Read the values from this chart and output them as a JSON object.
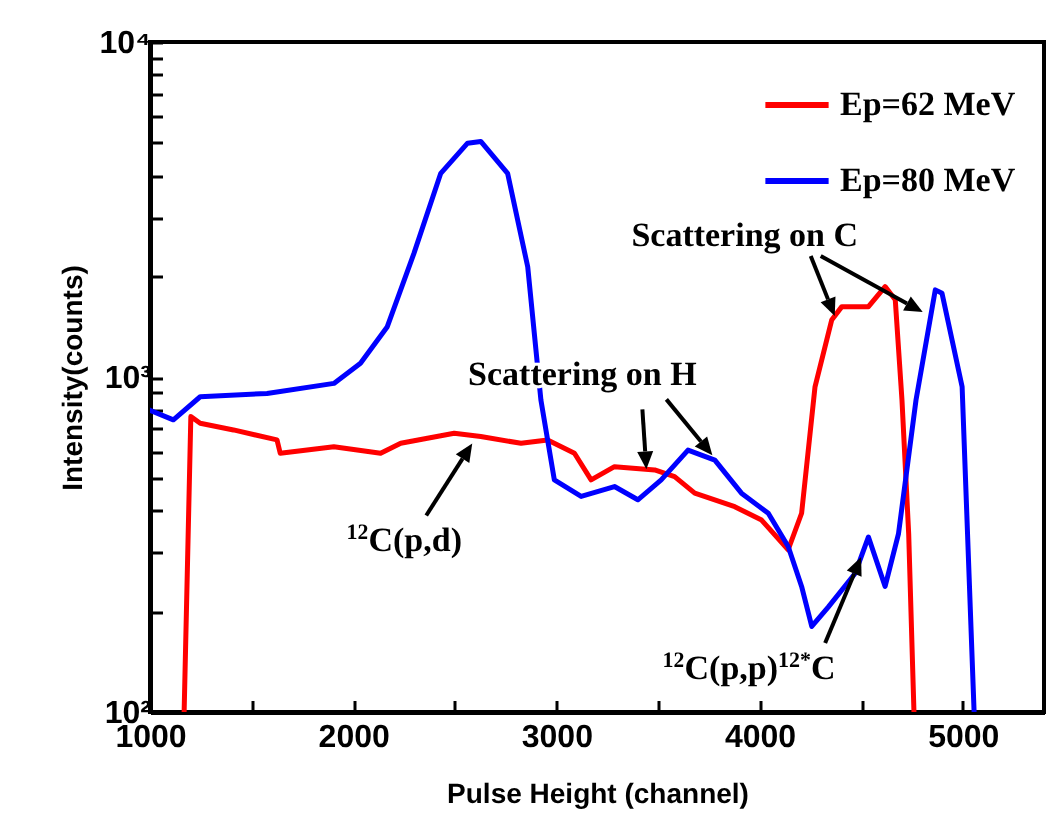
{
  "chart_data": {
    "type": "line",
    "xlabel": "Pulse Height (channel)",
    "ylabel": "Intensity(counts)",
    "log": true,
    "legend": "top right",
    "grid": false,
    "xlim": [
      1000,
      5400
    ],
    "xticks": [
      1000,
      {
        "value": 1500,
        "label": null
      },
      2000,
      {
        "value": 2500,
        "label": null
      },
      3000,
      {
        "value": 3500,
        "label": null
      },
      4000,
      {
        "value": 4500,
        "label": null
      },
      5000
    ],
    "ylim": [
      100,
      10000
    ],
    "yticks": [
      {
        "value": 100,
        "label": "10²"
      },
      {
        "value": 200,
        "label": null
      },
      {
        "value": 300,
        "label": null
      },
      {
        "value": 400,
        "label": null
      },
      {
        "value": 500,
        "label": null
      },
      {
        "value": 600,
        "label": null
      },
      {
        "value": 700,
        "label": null
      },
      {
        "value": 800,
        "label": null
      },
      {
        "value": 900,
        "label": null
      },
      {
        "value": 1000,
        "label": "10³"
      },
      {
        "value": 2000,
        "label": null
      },
      {
        "value": 3000,
        "label": null
      },
      {
        "value": 4000,
        "label": null
      },
      {
        "value": 5000,
        "label": null
      },
      {
        "value": 6000,
        "label": null
      },
      {
        "value": 7000,
        "label": null
      },
      {
        "value": 8000,
        "label": null
      },
      {
        "value": 9000,
        "label": null
      },
      {
        "value": 10000,
        "label": "10⁴"
      }
    ],
    "series": [
      {
        "name": "Ep=62 MeV",
        "color": "#ff0000",
        "x": [
          1168,
          1201,
          1247,
          1411,
          1625,
          1641,
          1905,
          2135,
          2234,
          2497,
          2628,
          2826,
          2957,
          3089,
          3171,
          3286,
          3484,
          3582,
          3681,
          3878,
          4010,
          4141,
          4207,
          4273,
          4355,
          4405,
          4536,
          4618,
          4668,
          4701,
          4734,
          4760
        ],
        "values": [
          100,
          762,
          728,
          695,
          649,
          592,
          619,
          592,
          634,
          679,
          664,
          634,
          649,
          592,
          493,
          540,
          528,
          504,
          450,
          410,
          374,
          305,
          392,
          935,
          1479,
          1622,
          1622,
          1862,
          1700,
          853,
          341,
          100
        ]
      },
      {
        "name": "Ep=80 MeV",
        "color": "#0000ff",
        "x": [
          1000,
          1115,
          1247,
          1576,
          1905,
          2036,
          2168,
          2299,
          2431,
          2563,
          2628,
          2760,
          2859,
          2924,
          2990,
          3122,
          3286,
          3401,
          3516,
          3648,
          3780,
          3911,
          4043,
          4141,
          4207,
          4257,
          4339,
          4470,
          4536,
          4618,
          4684,
          4770,
          4865,
          4898,
          4997,
          5056
        ],
        "values": [
          796,
          745,
          873,
          893,
          957,
          1099,
          1413,
          2339,
          4055,
          4989,
          5050,
          4055,
          2133,
          853,
          493,
          440,
          471,
          430,
          493,
          605,
          565,
          450,
          392,
          312,
          237,
          180,
          206,
          259,
          333,
          237,
          341,
          853,
          1820,
          1778,
          935,
          100
        ]
      }
    ],
    "annotations": [
      {
        "text": "$^{12}$C(p,d)",
        "x": 2586,
        "y": 669
      },
      {
        "text": "Scattering on H",
        "x": 3443,
        "y": 530
      },
      {
        "text": "Scattering on C",
        "x": 4370,
        "y": 1520
      },
      {
        "text": "$^{12}$C(p,p)$^{12*}$C",
        "x": 4500,
        "y": 290
      }
    ]
  }
}
